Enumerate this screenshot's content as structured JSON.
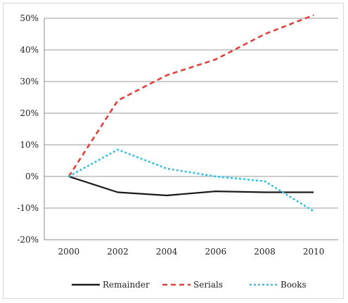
{
  "chart_data": {
    "type": "line",
    "x": [
      2000,
      2002,
      2004,
      2006,
      2008,
      2010
    ],
    "x_tick_labels": [
      "2000",
      "2002",
      "2004",
      "2006",
      "2008",
      "2010"
    ],
    "y_tick_labels": [
      "50%",
      "40%",
      "30%",
      "20%",
      "10%",
      "0%",
      "-10%",
      "-20%"
    ],
    "y_ticks": [
      50,
      40,
      30,
      20,
      10,
      0,
      -10,
      -20
    ],
    "ylim": [
      -20,
      50
    ],
    "xlim": [
      1999,
      2011
    ],
    "grid": "horizontal",
    "legend_position": "bottom",
    "series": [
      {
        "name": "Remainder",
        "values": [
          0,
          -5,
          -6,
          -4.7,
          -5,
          -5
        ],
        "color": "#1a1a1a",
        "dash": "solid"
      },
      {
        "name": "Serials",
        "values": [
          0,
          24,
          32,
          37,
          45,
          51
        ],
        "color": "#e0403a",
        "dash": "dashed"
      },
      {
        "name": "Books",
        "values": [
          0,
          8.5,
          2.5,
          0,
          -1.5,
          -11
        ],
        "color": "#33bfe0",
        "dash": "dotted"
      }
    ]
  }
}
